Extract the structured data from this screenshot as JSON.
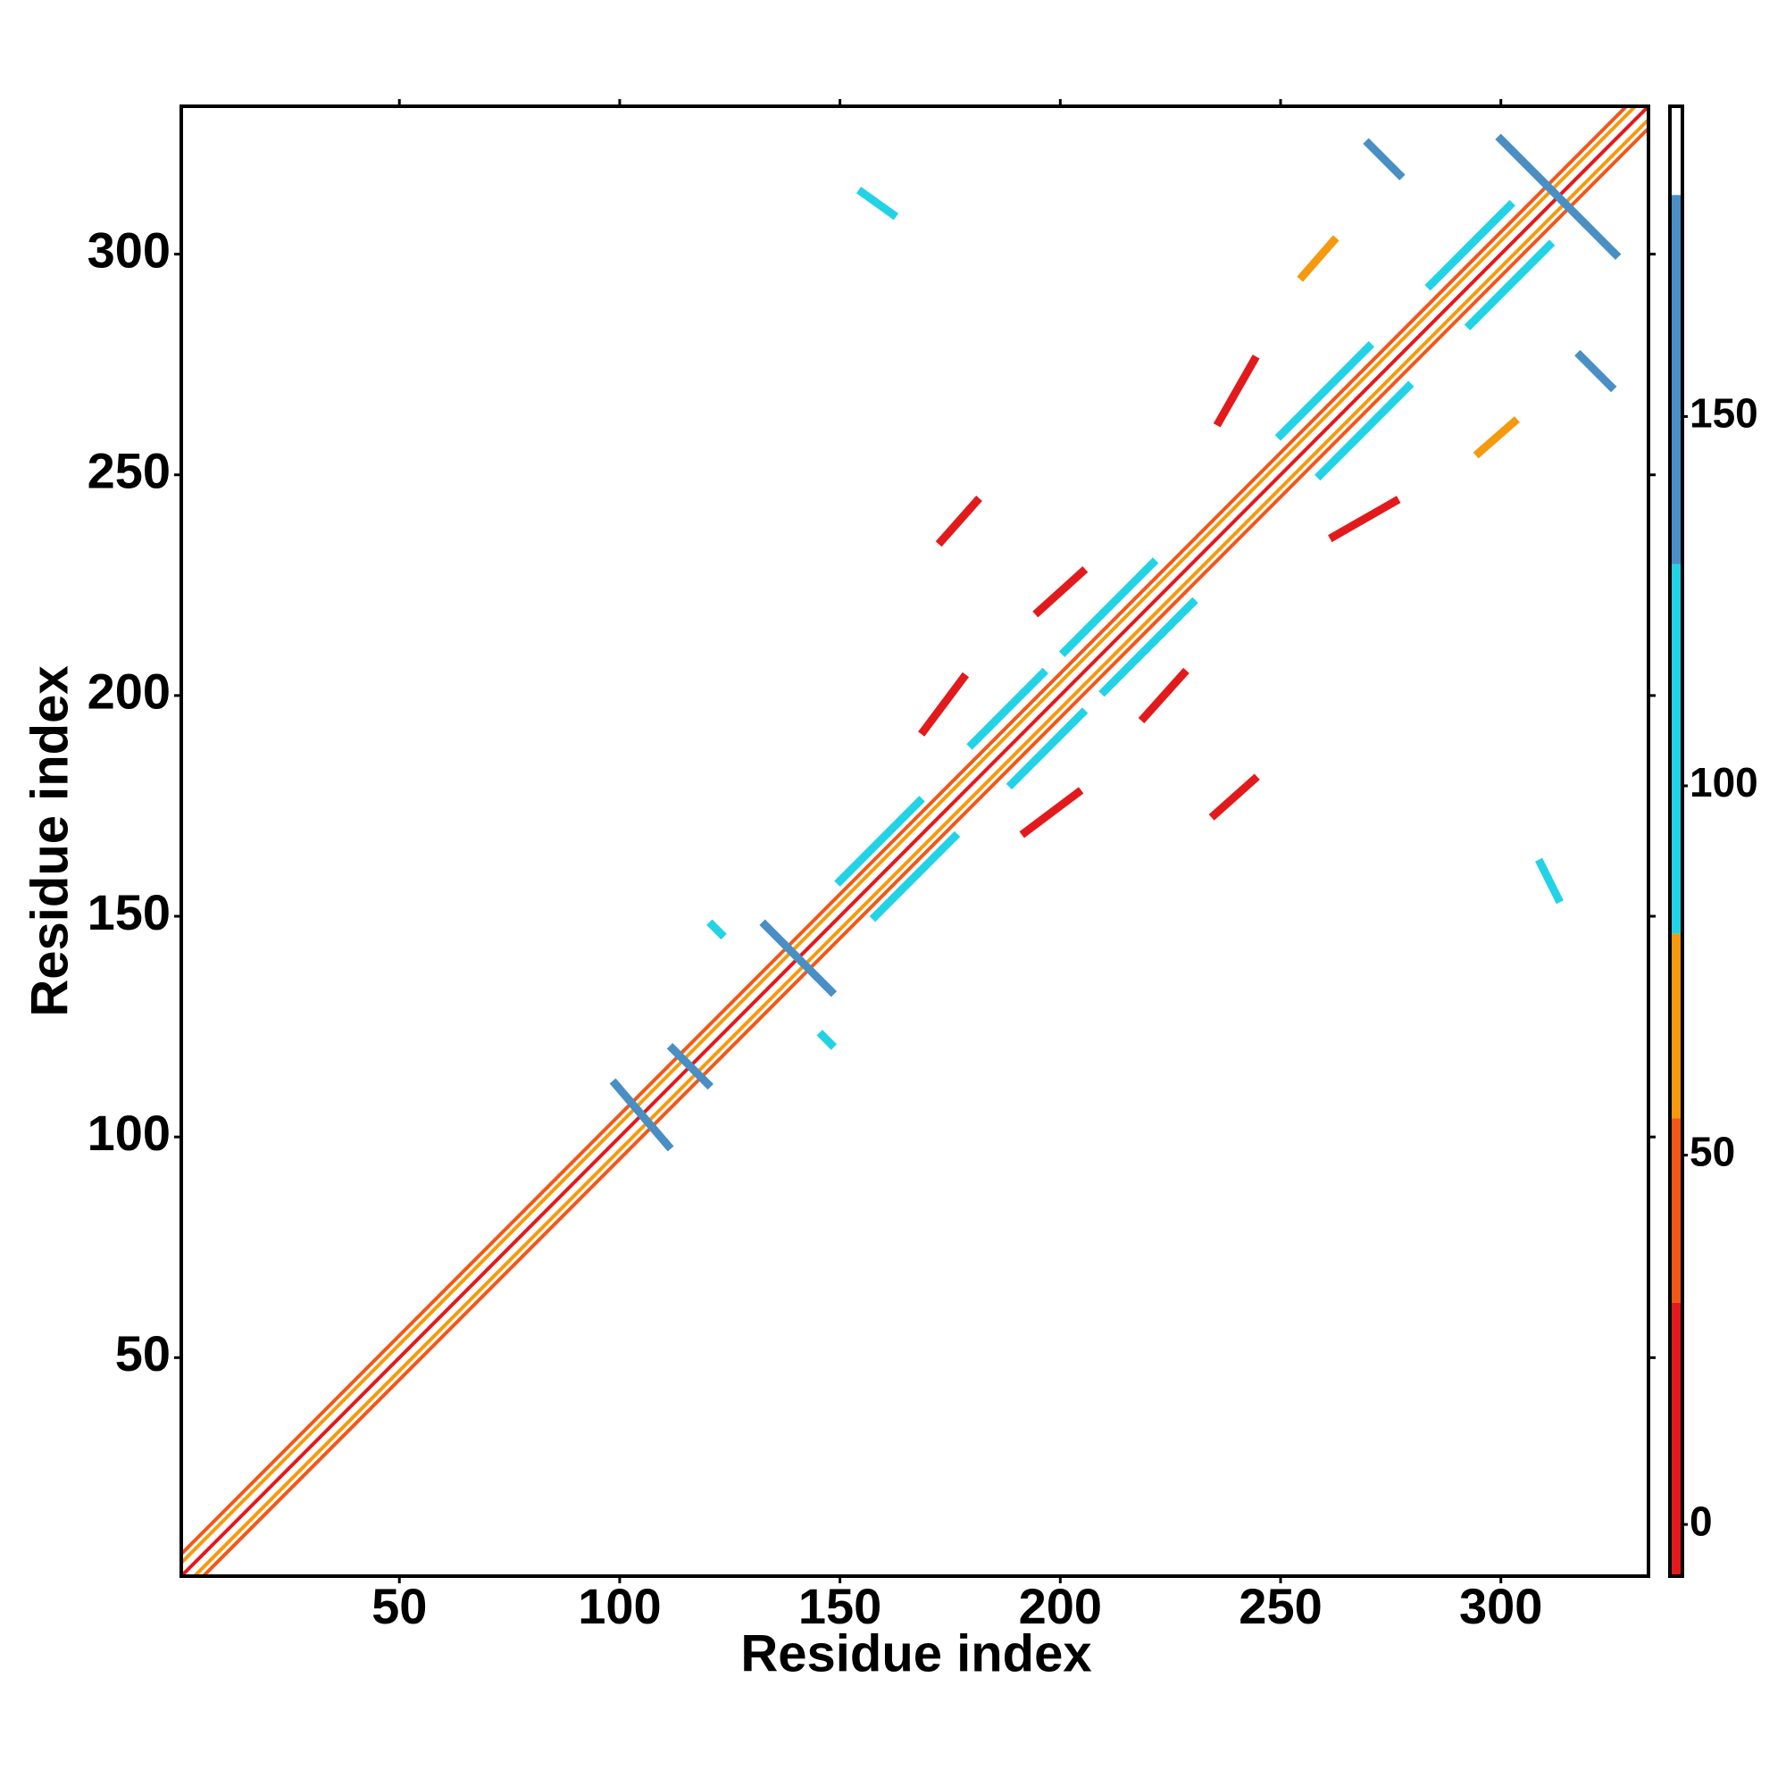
{
  "chart_data": {
    "type": "heatmap",
    "xlabel": "Residue index",
    "ylabel": "Residue index",
    "xlim": [
      0.5,
      333.5
    ],
    "ylim": [
      0.5,
      333.5
    ],
    "xticks": [
      50,
      100,
      150,
      200,
      250,
      300
    ],
    "yticks": [
      50,
      100,
      150,
      200,
      250,
      300
    ],
    "colorbar": {
      "lim": [
        -7,
        192
      ],
      "ticks": [
        0,
        50,
        100,
        150
      ],
      "bounds": [
        -7,
        30,
        55,
        80,
        130,
        180,
        192
      ],
      "colors": [
        "#e31a1c",
        "#f2571a",
        "#f59a0e",
        "#22d3e6",
        "#4a8fc4",
        "#ffffff"
      ]
    },
    "segments": [
      {
        "from": [
          1,
          1
        ],
        "to": [
          333,
          333
        ],
        "value": 5
      },
      {
        "from": [
          4,
          1
        ],
        "to": [
          333,
          330
        ],
        "value": 60
      },
      {
        "from": [
          1,
          4
        ],
        "to": [
          330,
          333
        ],
        "value": 60
      },
      {
        "from": [
          6,
          1
        ],
        "to": [
          333,
          328
        ],
        "value": 40
      },
      {
        "from": [
          1,
          6
        ],
        "to": [
          328,
          333
        ],
        "value": 40
      },
      {
        "from": [
          150,
          158
        ],
        "to": [
          168,
          176
        ],
        "value": 95
      },
      {
        "from": [
          158,
          150
        ],
        "to": [
          176,
          168
        ],
        "value": 95
      },
      {
        "from": [
          180,
          189
        ],
        "to": [
          196,
          205
        ],
        "value": 95
      },
      {
        "from": [
          189,
          180
        ],
        "to": [
          205,
          196
        ],
        "value": 95
      },
      {
        "from": [
          201,
          210
        ],
        "to": [
          221,
          230
        ],
        "value": 95
      },
      {
        "from": [
          210,
          201
        ],
        "to": [
          230,
          221
        ],
        "value": 95
      },
      {
        "from": [
          250,
          259
        ],
        "to": [
          270,
          279
        ],
        "value": 95
      },
      {
        "from": [
          259,
          250
        ],
        "to": [
          279,
          270
        ],
        "value": 95
      },
      {
        "from": [
          284,
          293
        ],
        "to": [
          302,
          311
        ],
        "value": 95
      },
      {
        "from": [
          293,
          284
        ],
        "to": [
          311,
          302
        ],
        "value": 95
      },
      {
        "from": [
          99,
          112
        ],
        "to": [
          111,
          98
        ],
        "value": 150
      },
      {
        "from": [
          112,
          120
        ],
        "to": [
          120,
          112
        ],
        "value": 150
      },
      {
        "from": [
          133,
          148
        ],
        "to": [
          148,
          133
        ],
        "value": 140
      },
      {
        "from": [
          300,
          326
        ],
        "to": [
          326,
          300
        ],
        "value": 150
      },
      {
        "from": [
          270,
          325
        ],
        "to": [
          277,
          318
        ],
        "value": 150
      },
      {
        "from": [
          318,
          277
        ],
        "to": [
          325,
          270
        ],
        "value": 150
      },
      {
        "from": [
          121,
          148
        ],
        "to": [
          123,
          146
        ],
        "value": 100
      },
      {
        "from": [
          146,
          123
        ],
        "to": [
          148,
          121
        ],
        "value": 100
      },
      {
        "from": [
          169,
          192
        ],
        "to": [
          178,
          204
        ],
        "value": 5
      },
      {
        "from": [
          192,
          169
        ],
        "to": [
          204,
          178
        ],
        "value": 5
      },
      {
        "from": [
          173,
          235
        ],
        "to": [
          181,
          244
        ],
        "value": 5
      },
      {
        "from": [
          235,
          173
        ],
        "to": [
          244,
          181
        ],
        "value": 5
      },
      {
        "from": [
          195,
          219
        ],
        "to": [
          205,
          228
        ],
        "value": 5
      },
      {
        "from": [
          219,
          195
        ],
        "to": [
          228,
          205
        ],
        "value": 5
      },
      {
        "from": [
          236,
          262
        ],
        "to": [
          244,
          276
        ],
        "value": 5
      },
      {
        "from": [
          262,
          236
        ],
        "to": [
          276,
          244
        ],
        "value": 5
      },
      {
        "from": [
          155,
          314
        ],
        "to": [
          162,
          309
        ],
        "value": 100
      },
      {
        "from": [
          309,
          162
        ],
        "to": [
          313,
          154
        ],
        "value": 100
      },
      {
        "from": [
          255,
          295
        ],
        "to": [
          262,
          303
        ],
        "value": 60
      },
      {
        "from": [
          295,
          255
        ],
        "to": [
          303,
          262
        ],
        "value": 60
      }
    ]
  }
}
